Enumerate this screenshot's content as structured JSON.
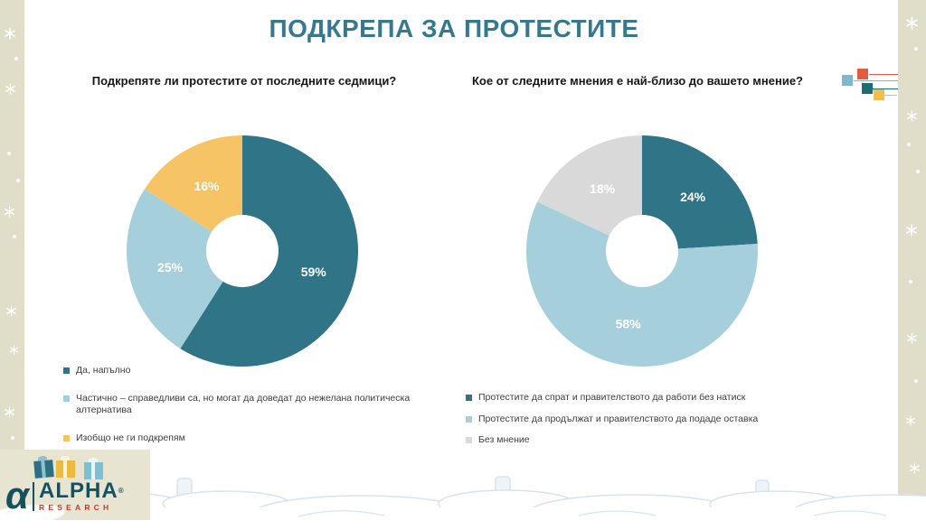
{
  "slide": {
    "title": "ПОДКРЕПА ЗА ПРОТЕСТИТЕ"
  },
  "chart_data": [
    {
      "type": "pie",
      "subtype": "donut",
      "title": "Подкрепяте ли протестите от последните седмици?",
      "legend_position": "bottom-left",
      "slices": [
        {
          "label": "Да, напълно",
          "value": 59,
          "pct": "59%",
          "color": "#2f7487"
        },
        {
          "label": "Частично – справедливи са, но могат да доведат до нежелана политическа алтернатива",
          "value": 25,
          "pct": "25%",
          "color": "#a5cfdb"
        },
        {
          "label": "Изобщо не ги подкрепям",
          "value": 16,
          "pct": "16%",
          "color": "#f6c365"
        }
      ]
    },
    {
      "type": "pie",
      "subtype": "donut",
      "title": "Кое от следните мнения е най-близо до вашето мнение?",
      "legend_position": "bottom-left",
      "slices": [
        {
          "label": "Протестите да спрат и правителството да работи без натиск",
          "value": 24,
          "pct": "24%",
          "color": "#2f7487"
        },
        {
          "label": "Протестите да продължат и правителството да подаде оставка",
          "value": 58,
          "pct": "58%",
          "color": "#a5cfdb"
        },
        {
          "label": "Без мнение",
          "value": 18,
          "pct": "18%",
          "color": "#d9d9d9"
        }
      ]
    }
  ],
  "logo": {
    "alpha_glyph": "α",
    "name": "ALPHA",
    "registered": "®",
    "sub": "RESEARCH"
  },
  "colors": {
    "title": "#36798c",
    "accent_teal": "#2f7487",
    "light_blue": "#a5cfdb",
    "yellow": "#f6c365",
    "gray": "#d9d9d9",
    "strip": "#e0ddc8",
    "deco_red": "#e25c3d",
    "deco_blue": "#7db8cc",
    "deco_teal": "#1e6b7a",
    "deco_yellow": "#eec04e"
  }
}
